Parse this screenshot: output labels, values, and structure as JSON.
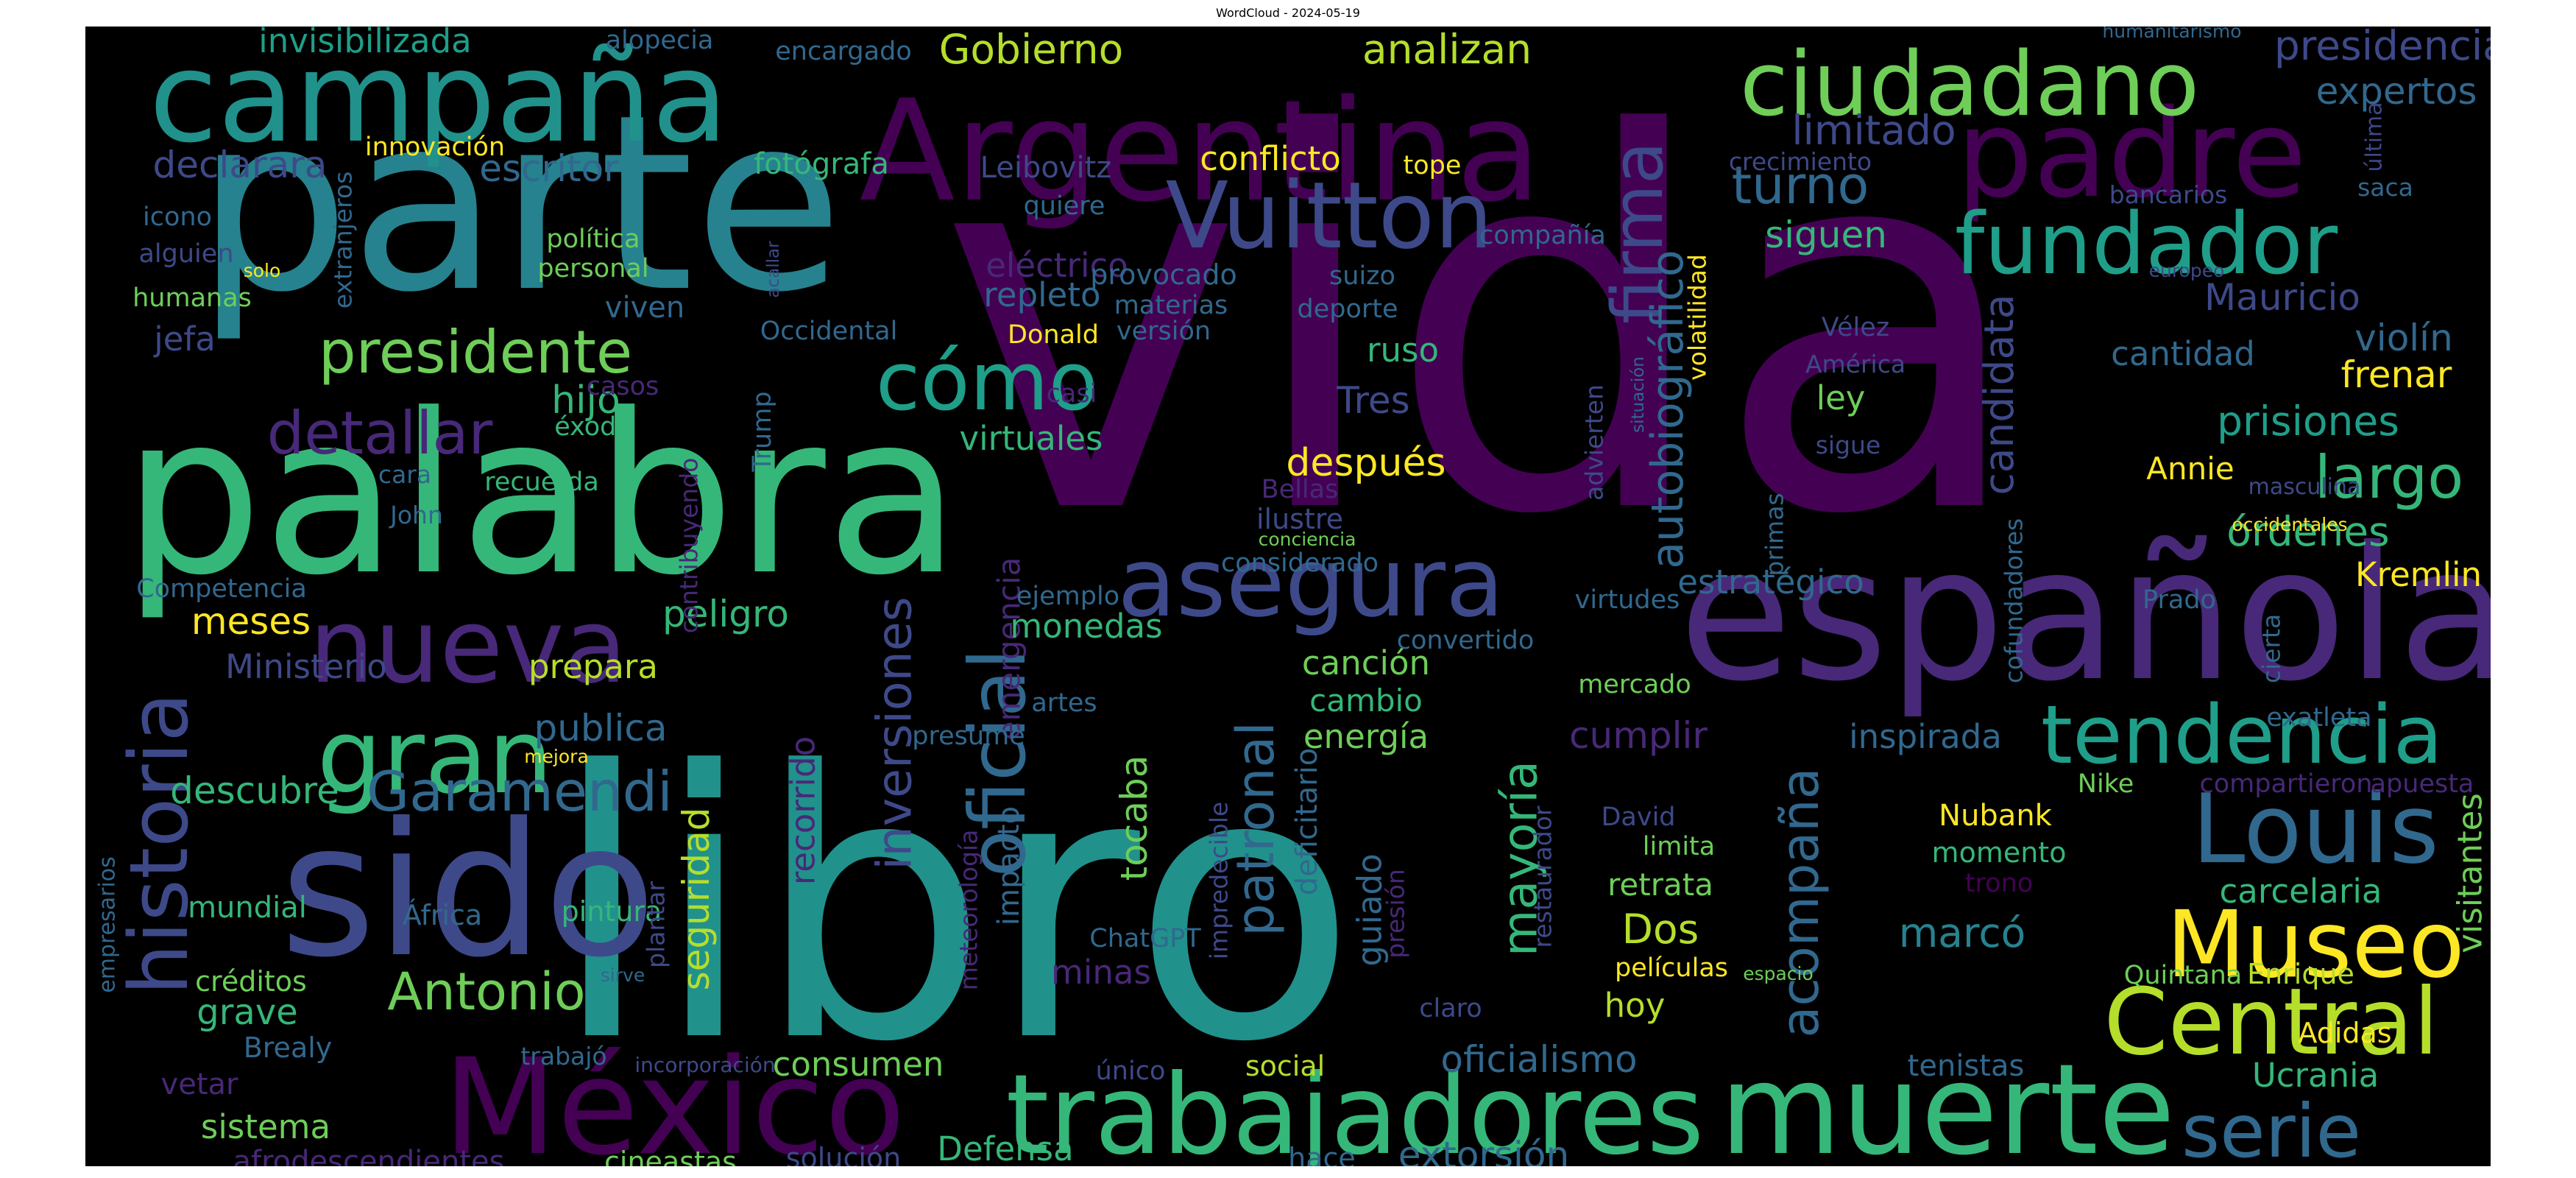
{
  "title": "WordCloud - 2024-05-19",
  "palette": {
    "purple": "#440154",
    "indigo": "#482878",
    "blue": "#3e4989",
    "steel": "#31688e",
    "teal": "#26828e",
    "sea": "#1f9e89",
    "green": "#35b779",
    "lime": "#6ece58",
    "yellowgreen": "#b5de2b",
    "yellow": "#fde725"
  },
  "words": [
    {
      "text": "vida",
      "color": "#440154"
    },
    {
      "text": "libro",
      "color": "#21918c"
    },
    {
      "text": "palabra",
      "color": "#35b779"
    },
    {
      "text": "parte",
      "color": "#26828e"
    },
    {
      "text": "sido",
      "color": "#3e4989"
    },
    {
      "text": "española",
      "color": "#482878"
    },
    {
      "text": "Argentina",
      "color": "#440154"
    },
    {
      "text": "campaña",
      "color": "#21918c"
    },
    {
      "text": "padre",
      "color": "#440154"
    },
    {
      "text": "México",
      "color": "#440154"
    },
    {
      "text": "muerte",
      "color": "#35b779"
    },
    {
      "text": "trabajadores",
      "color": "#35b779"
    },
    {
      "text": "ciudadano",
      "color": "#6ece58"
    },
    {
      "text": "nueva",
      "color": "#482878"
    },
    {
      "text": "Vuitton",
      "color": "#3e4989"
    },
    {
      "text": "fundador",
      "color": "#1f9e89"
    },
    {
      "text": "cómo",
      "color": "#1f9e89"
    },
    {
      "text": "asegura",
      "color": "#3e4989"
    },
    {
      "text": "gran",
      "color": "#35b779"
    },
    {
      "text": "Museo",
      "color": "#fde725"
    },
    {
      "text": "Central",
      "color": "#b5de2b"
    },
    {
      "text": "Louis",
      "color": "#31688e"
    },
    {
      "text": "tendencia",
      "color": "#1f9e89"
    },
    {
      "text": "oficial",
      "color": "#31688e"
    },
    {
      "text": "historia",
      "color": "#3e4989"
    },
    {
      "text": "serie",
      "color": "#31688e"
    },
    {
      "text": "firma",
      "color": "#3e4989"
    },
    {
      "text": "presidente",
      "color": "#6ece58"
    },
    {
      "text": "Garamendi",
      "color": "#31688e"
    },
    {
      "text": "Antonio",
      "color": "#6ece58"
    },
    {
      "text": "acompaña",
      "color": "#31688e"
    },
    {
      "text": "detallar",
      "color": "#482878"
    },
    {
      "text": "inversiones",
      "color": "#3e4989"
    },
    {
      "text": "mayoría",
      "color": "#35b779"
    },
    {
      "text": "patronal",
      "color": "#31688e"
    },
    {
      "text": "candidata",
      "color": "#3e4989"
    },
    {
      "text": "largo",
      "color": "#35b779"
    },
    {
      "text": "autobiográfico",
      "color": "#31688e"
    },
    {
      "text": "oficialismo",
      "color": "#31688e"
    },
    {
      "text": "extorsión",
      "color": "#31688e"
    },
    {
      "text": "Defensa",
      "color": "#35b779"
    },
    {
      "text": "turno",
      "color": "#31688e"
    },
    {
      "text": "siguen",
      "color": "#35b779"
    },
    {
      "text": "limitado",
      "color": "#3e4989"
    },
    {
      "text": "presidencial",
      "color": "#3e4989"
    },
    {
      "text": "expertos",
      "color": "#31688e"
    },
    {
      "text": "Mauricio",
      "color": "#3e4989"
    },
    {
      "text": "violín",
      "color": "#31688e"
    },
    {
      "text": "frenar",
      "color": "#fde725"
    },
    {
      "text": "cantidad",
      "color": "#31688e"
    },
    {
      "text": "prisiones",
      "color": "#1f9e89"
    },
    {
      "text": "órdenes",
      "color": "#35b779"
    },
    {
      "text": "Kremlin",
      "color": "#fde725"
    },
    {
      "text": "Annie",
      "color": "#fde725"
    },
    {
      "text": "ley",
      "color": "#6ece58"
    },
    {
      "text": "Tres",
      "color": "#3e4989"
    },
    {
      "text": "ruso",
      "color": "#35b779"
    },
    {
      "text": "después",
      "color": "#fde725"
    },
    {
      "text": "repleto",
      "color": "#31688e"
    },
    {
      "text": "eléctrico",
      "color": "#482878"
    },
    {
      "text": "virtuales",
      "color": "#35b779"
    },
    {
      "text": "hijo",
      "color": "#35b779"
    },
    {
      "text": "viven",
      "color": "#31688e"
    },
    {
      "text": "conflicto",
      "color": "#fde725"
    },
    {
      "text": "Gobierno",
      "color": "#b5de2b"
    },
    {
      "text": "analizan",
      "color": "#b5de2b"
    },
    {
      "text": "escritor",
      "color": "#31688e"
    },
    {
      "text": "fotógrafa",
      "color": "#35b779"
    },
    {
      "text": "Leibovitz",
      "color": "#3e4989"
    },
    {
      "text": "declarara",
      "color": "#3e4989"
    },
    {
      "text": "invisibilizada",
      "color": "#1f9e89"
    },
    {
      "text": "alopecia",
      "color": "#31688e"
    },
    {
      "text": "encargado",
      "color": "#31688e"
    },
    {
      "text": "tope",
      "color": "#fde725"
    },
    {
      "text": "meses",
      "color": "#fde725"
    },
    {
      "text": "peligro",
      "color": "#35b779"
    },
    {
      "text": "prepara",
      "color": "#b5de2b"
    },
    {
      "text": "Ministerio",
      "color": "#3e4989"
    },
    {
      "text": "publica",
      "color": "#31688e"
    },
    {
      "text": "descubre",
      "color": "#35b779"
    },
    {
      "text": "seguridad",
      "color": "#b5de2b"
    },
    {
      "text": "grave",
      "color": "#35b779"
    },
    {
      "text": "mundial",
      "color": "#35b779"
    },
    {
      "text": "sistema",
      "color": "#6ece58"
    },
    {
      "text": "vetar",
      "color": "#482878"
    },
    {
      "text": "Brealy",
      "color": "#31688e"
    },
    {
      "text": "créditos",
      "color": "#6ece58"
    },
    {
      "text": "África",
      "color": "#31688e"
    },
    {
      "text": "pintura",
      "color": "#35b779"
    },
    {
      "text": "afrodescendientes",
      "color": "#482878"
    },
    {
      "text": "cineastas",
      "color": "#6ece58"
    },
    {
      "text": "solución",
      "color": "#3e4989"
    },
    {
      "text": "hace",
      "color": "#31688e"
    },
    {
      "text": "consumen",
      "color": "#6ece58"
    },
    {
      "text": "minas",
      "color": "#482878"
    },
    {
      "text": "impacto",
      "color": "#31688e"
    },
    {
      "text": "tocaba",
      "color": "#6ece58"
    },
    {
      "text": "recorrido",
      "color": "#482878"
    },
    {
      "text": "emergencia",
      "color": "#482878"
    },
    {
      "text": "monedas",
      "color": "#35b779"
    },
    {
      "text": "canción",
      "color": "#6ece58"
    },
    {
      "text": "cambio",
      "color": "#35b779"
    },
    {
      "text": "energía",
      "color": "#6ece58"
    },
    {
      "text": "cumplir",
      "color": "#482878"
    },
    {
      "text": "inspirada",
      "color": "#31688e"
    },
    {
      "text": "estratégico",
      "color": "#31688e"
    },
    {
      "text": "virtudes",
      "color": "#31688e"
    },
    {
      "text": "mercado",
      "color": "#6ece58"
    },
    {
      "text": "convertido",
      "color": "#31688e"
    },
    {
      "text": "carcelaria",
      "color": "#35b779"
    },
    {
      "text": "marcó",
      "color": "#26828e"
    },
    {
      "text": "Dos",
      "color": "#b5de2b"
    },
    {
      "text": "retrata",
      "color": "#6ece58"
    },
    {
      "text": "hoy",
      "color": "#b5de2b"
    },
    {
      "text": "limita",
      "color": "#6ece58"
    },
    {
      "text": "David",
      "color": "#3e4989"
    },
    {
      "text": "películas",
      "color": "#fde725"
    },
    {
      "text": "trono",
      "color": "#440154"
    },
    {
      "text": "momento",
      "color": "#35b779"
    },
    {
      "text": "Nubank",
      "color": "#fde725"
    },
    {
      "text": "Ucrania",
      "color": "#35b779"
    },
    {
      "text": "tenistas",
      "color": "#31688e"
    },
    {
      "text": "Adidas",
      "color": "#fde725"
    },
    {
      "text": "Quintana",
      "color": "#6ece58"
    },
    {
      "text": "Enrique",
      "color": "#b5de2b"
    },
    {
      "text": "visitantes",
      "color": "#6ece58"
    },
    {
      "text": "Nike",
      "color": "#6ece58"
    },
    {
      "text": "compartieron",
      "color": "#482878"
    },
    {
      "text": "apuesta",
      "color": "#482878"
    },
    {
      "text": "exatleta",
      "color": "#31688e"
    },
    {
      "text": "Prado",
      "color": "#31688e"
    },
    {
      "text": "guiado",
      "color": "#31688e"
    },
    {
      "text": "deficitario",
      "color": "#31688e"
    },
    {
      "text": "social",
      "color": "#b5de2b"
    },
    {
      "text": "único",
      "color": "#3e4989"
    },
    {
      "text": "claro",
      "color": "#3e4989"
    },
    {
      "text": "ChatGPT",
      "color": "#31688e"
    },
    {
      "text": "artes",
      "color": "#31688e"
    },
    {
      "text": "presume",
      "color": "#31688e"
    },
    {
      "text": "provocado",
      "color": "#31688e"
    },
    {
      "text": "materias",
      "color": "#31688e"
    },
    {
      "text": "versión",
      "color": "#31688e"
    },
    {
      "text": "compañía",
      "color": "#31688e"
    },
    {
      "text": "suizo",
      "color": "#31688e"
    },
    {
      "text": "deporte",
      "color": "#31688e"
    },
    {
      "text": "considerado",
      "color": "#31688e"
    },
    {
      "text": "ilustre",
      "color": "#3e4989"
    },
    {
      "text": "Bellas",
      "color": "#482878"
    },
    {
      "text": "conciencia",
      "color": "#6ece58"
    },
    {
      "text": "ejemplo",
      "color": "#31688e"
    },
    {
      "text": "Donald",
      "color": "#fde725"
    },
    {
      "text": "Occidental",
      "color": "#31688e"
    },
    {
      "text": "casos",
      "color": "#482878"
    },
    {
      "text": "éxodo",
      "color": "#35b779"
    },
    {
      "text": "casi",
      "color": "#482878"
    },
    {
      "text": "Trump",
      "color": "#31688e"
    },
    {
      "text": "recuerda",
      "color": "#35b779"
    },
    {
      "text": "cara",
      "color": "#31688e"
    },
    {
      "text": "John",
      "color": "#31688e"
    },
    {
      "text": "Competencia",
      "color": "#31688e"
    },
    {
      "text": "jefa",
      "color": "#3e4989"
    },
    {
      "text": "humanas",
      "color": "#6ece58"
    },
    {
      "text": "alguien",
      "color": "#3e4989"
    },
    {
      "text": "icono",
      "color": "#31688e"
    },
    {
      "text": "política",
      "color": "#6ece58"
    },
    {
      "text": "personal",
      "color": "#6ece58"
    },
    {
      "text": "solo",
      "color": "#fde725"
    },
    {
      "text": "innovación",
      "color": "#fde725"
    },
    {
      "text": "quiere",
      "color": "#31688e"
    },
    {
      "text": "crecimiento",
      "color": "#3e4989"
    },
    {
      "text": "bancarios",
      "color": "#3e4989"
    },
    {
      "text": "saca",
      "color": "#31688e"
    },
    {
      "text": "europeo",
      "color": "#3e4989"
    },
    {
      "text": "humanitarismo",
      "color": "#31688e"
    },
    {
      "text": "última",
      "color": "#3e4989"
    },
    {
      "text": "Vélez",
      "color": "#3e4989"
    },
    {
      "text": "América",
      "color": "#3e4989"
    },
    {
      "text": "sigue",
      "color": "#3e4989"
    },
    {
      "text": "masculina",
      "color": "#3e4989"
    },
    {
      "text": "occidentales",
      "color": "#fde725"
    },
    {
      "text": "mejora",
      "color": "#fde725"
    },
    {
      "text": "empresarios",
      "color": "#31688e"
    },
    {
      "text": "sirve",
      "color": "#31688e"
    },
    {
      "text": "trabajó",
      "color": "#31688e"
    },
    {
      "text": "incorporación",
      "color": "#3e4989"
    },
    {
      "text": "espacio",
      "color": "#6ece58"
    },
    {
      "text": "extranjeros",
      "color": "#31688e"
    },
    {
      "text": "acallar",
      "color": "#3e4989"
    },
    {
      "text": "contribuyendo",
      "color": "#482878"
    },
    {
      "text": "plantar",
      "color": "#3e4989"
    },
    {
      "text": "meteorología",
      "color": "#482878"
    },
    {
      "text": "impredecible",
      "color": "#3e4989"
    },
    {
      "text": "presión",
      "color": "#482878"
    },
    {
      "text": "restaurador",
      "color": "#3e4989"
    },
    {
      "text": "advierten",
      "color": "#3e4989"
    },
    {
      "text": "situación",
      "color": "#31688e"
    },
    {
      "text": "volatilidad",
      "color": "#fde725"
    },
    {
      "text": "primas",
      "color": "#31688e"
    },
    {
      "text": "cofundadores",
      "color": "#31688e"
    },
    {
      "text": "cierta",
      "color": "#31688e"
    }
  ]
}
